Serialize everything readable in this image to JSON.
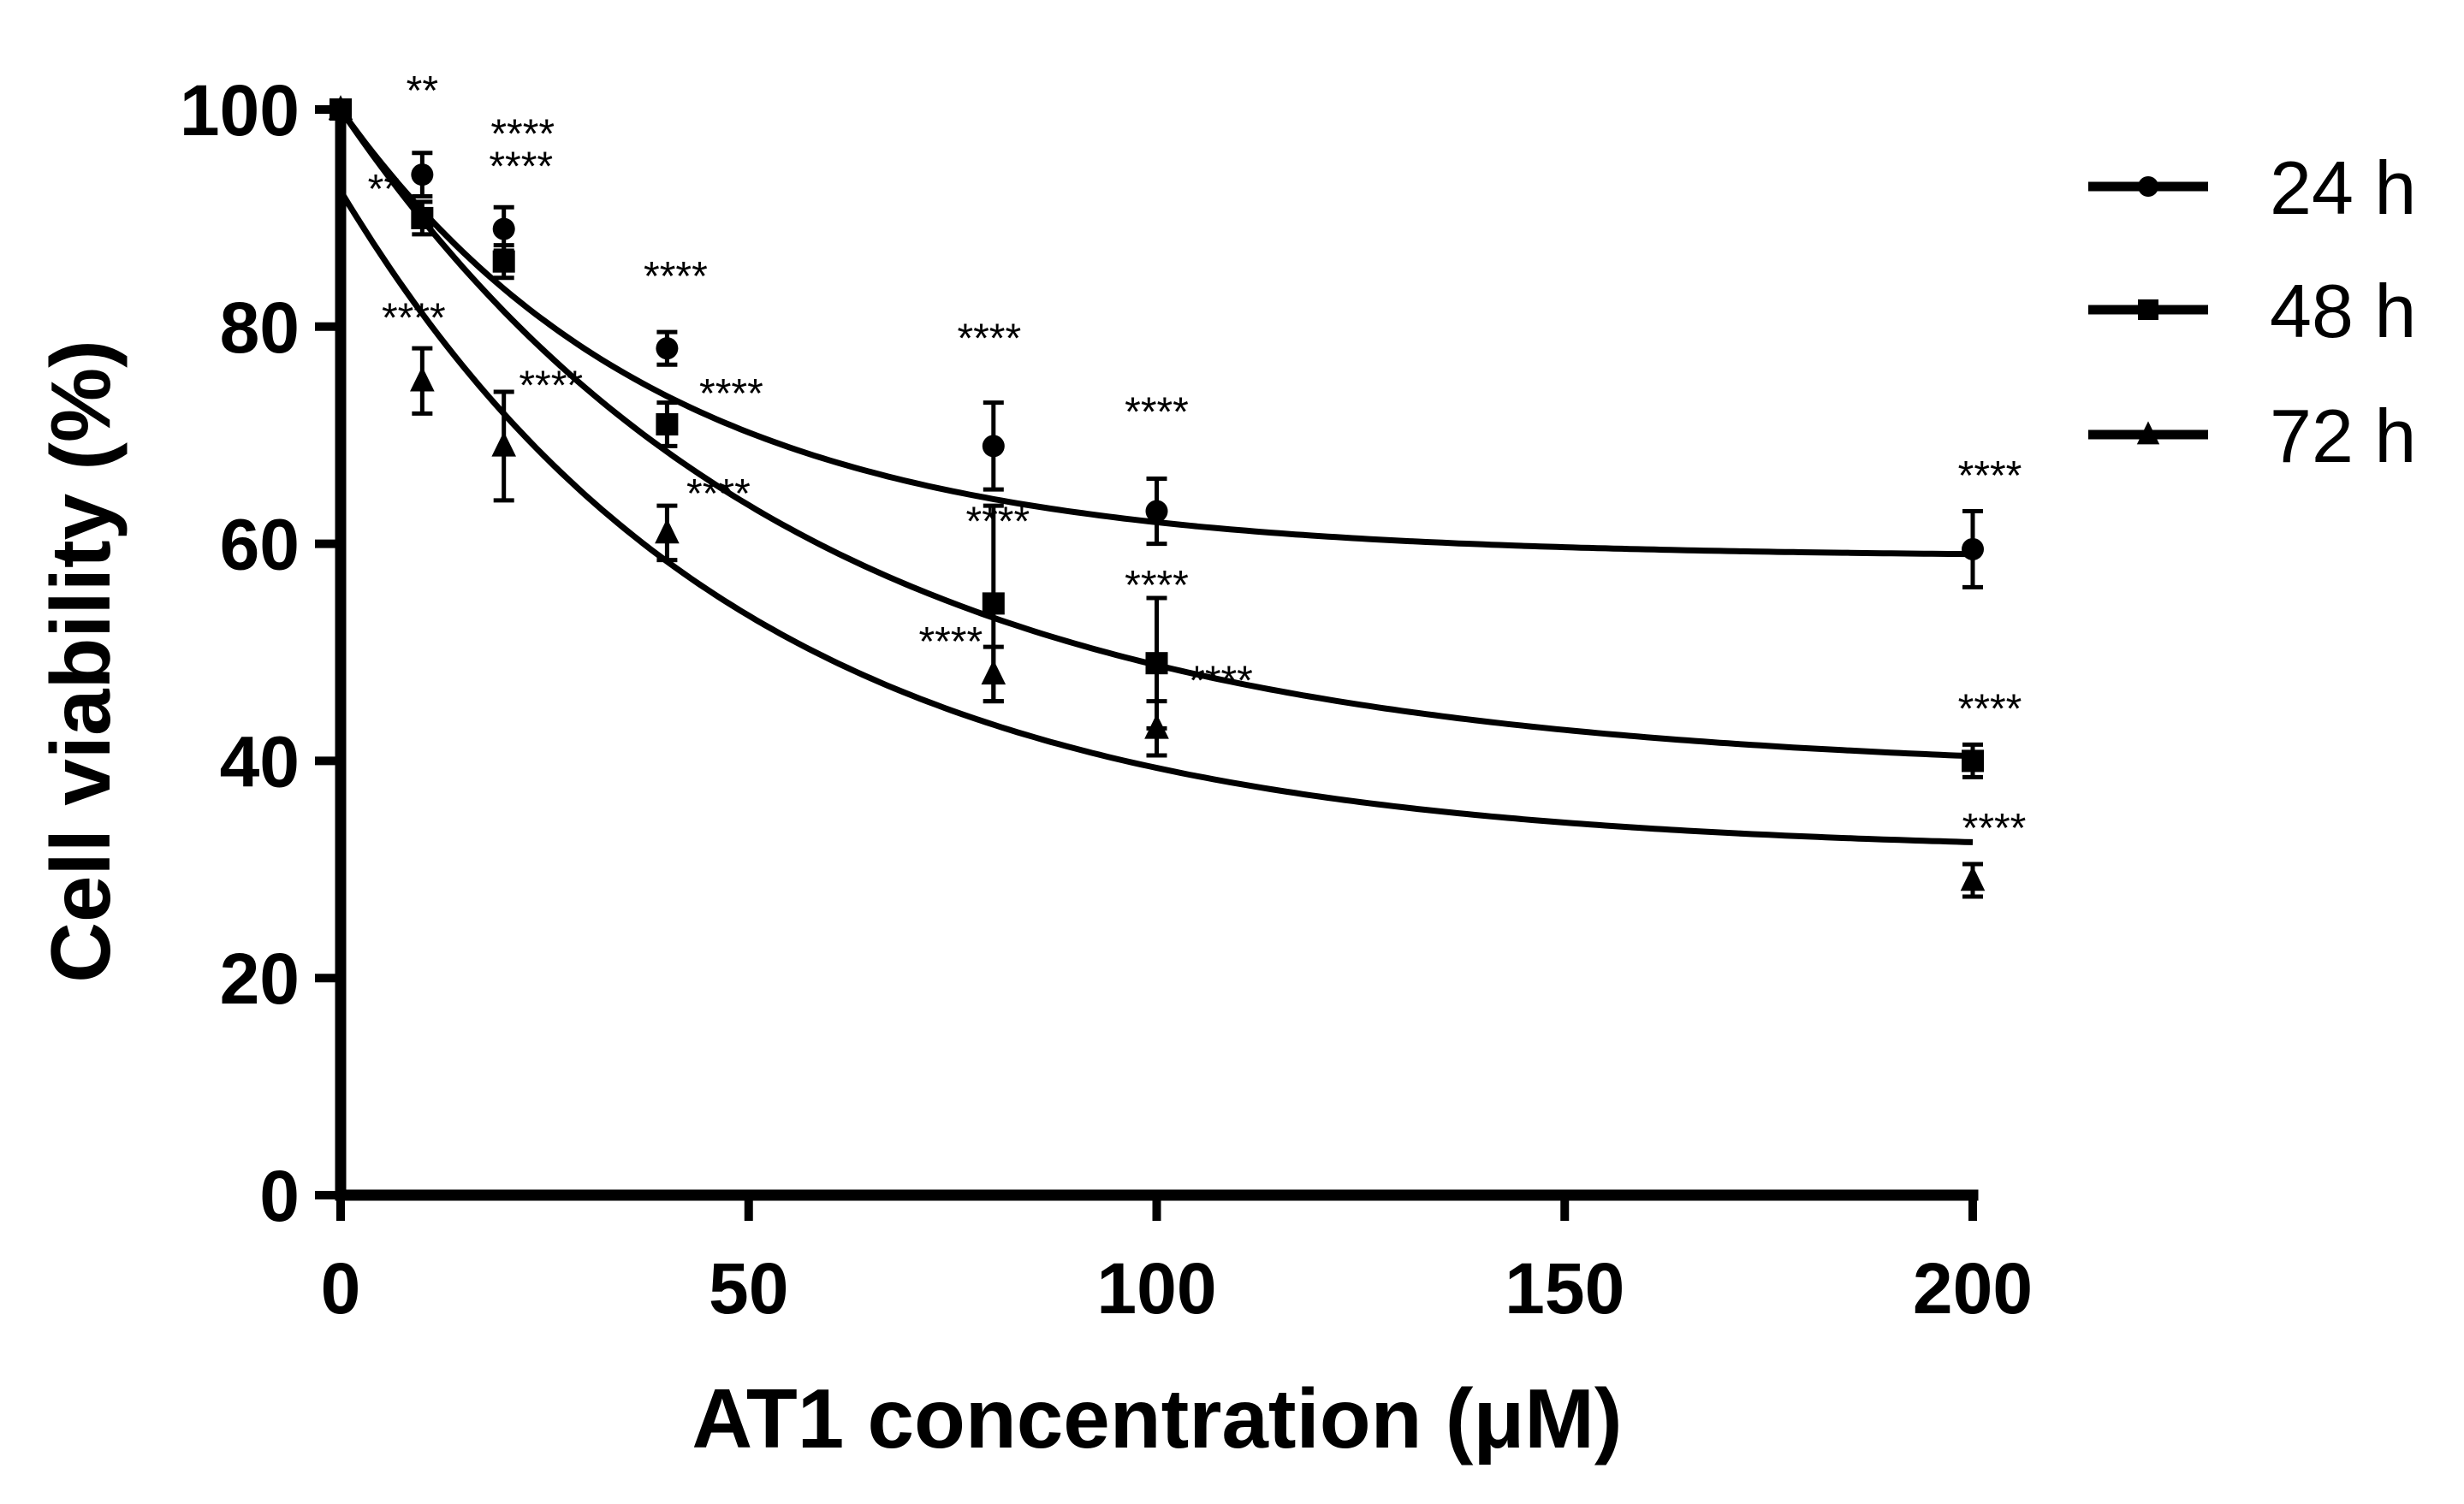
{
  "chart_data": {
    "type": "scatter",
    "xlabel": "AT1 concentration (μM)",
    "ylabel": "Cell viability (%)",
    "xlim": [
      0,
      200
    ],
    "ylim": [
      0,
      100
    ],
    "xticks": [
      "0",
      "50",
      "100",
      "150",
      "200"
    ],
    "yticks": [
      "0",
      "20",
      "40",
      "60",
      "80",
      "100"
    ],
    "legend_position": "top-right",
    "grid": false,
    "series": [
      {
        "name": "24 h",
        "marker": "circle",
        "x": [
          0,
          10,
          20,
          40,
          80,
          100,
          200
        ],
        "y": [
          100,
          94,
          89,
          78,
          69,
          63,
          59.5
        ],
        "err": [
          0,
          2,
          2,
          1.5,
          4,
          3,
          3.5
        ],
        "sig": [
          "",
          "**",
          "****",
          "****",
          "****",
          "****",
          "****"
        ],
        "fit": {
          "plateau": 58.8,
          "span": 41.2,
          "k": 0.0256
        }
      },
      {
        "name": "48 h",
        "marker": "square",
        "x": [
          0,
          10,
          20,
          40,
          80,
          100,
          200
        ],
        "y": [
          100,
          90,
          86,
          71,
          54.5,
          49,
          40
        ],
        "err": [
          0,
          1.5,
          1.5,
          2,
          9,
          6,
          1.5
        ],
        "sig": [
          "",
          "**",
          "****",
          "****",
          "****",
          "****",
          "****"
        ],
        "fit": {
          "plateau": 38.8,
          "span": 61.2,
          "k": 0.0181
        }
      },
      {
        "name": "72 h",
        "marker": "triangle",
        "x": [
          0,
          10,
          20,
          40,
          80,
          100,
          200
        ],
        "y": [
          100,
          75,
          69,
          61,
          48,
          43,
          29
        ],
        "err": [
          0,
          3,
          5,
          2.5,
          2.5,
          2.5,
          1.5
        ],
        "sig": [
          "",
          "****",
          "****",
          "****",
          "****",
          "****",
          "****"
        ],
        "fit": {
          "plateau": 31.5,
          "span": 61.0,
          "k": 0.0205
        }
      }
    ]
  }
}
